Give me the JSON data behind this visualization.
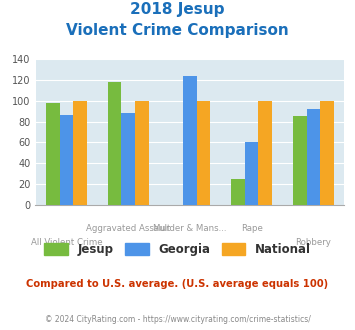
{
  "title_line1": "2018 Jesup",
  "title_line2": "Violent Crime Comparison",
  "title_color": "#1a6fba",
  "jesup": [
    98,
    118,
    0,
    25,
    85
  ],
  "georgia": [
    86,
    88,
    124,
    60,
    92
  ],
  "national": [
    100,
    100,
    100,
    100,
    100
  ],
  "jesup_color": "#77bb3f",
  "georgia_color": "#4d94e8",
  "national_color": "#f5a623",
  "ylim": [
    0,
    140
  ],
  "yticks": [
    0,
    20,
    40,
    60,
    80,
    100,
    120,
    140
  ],
  "plot_bg": "#dce9f0",
  "top_labels": [
    "",
    "Aggravated Assault",
    "Murder & Mans...",
    "Rape",
    ""
  ],
  "bot_labels": [
    "All Violent Crime",
    "",
    "",
    "",
    "Robbery"
  ],
  "note": "Compared to U.S. average. (U.S. average equals 100)",
  "note_color": "#cc3300",
  "footer": "© 2024 CityRating.com - https://www.cityrating.com/crime-statistics/",
  "footer_color": "#888888",
  "bar_width": 0.22
}
